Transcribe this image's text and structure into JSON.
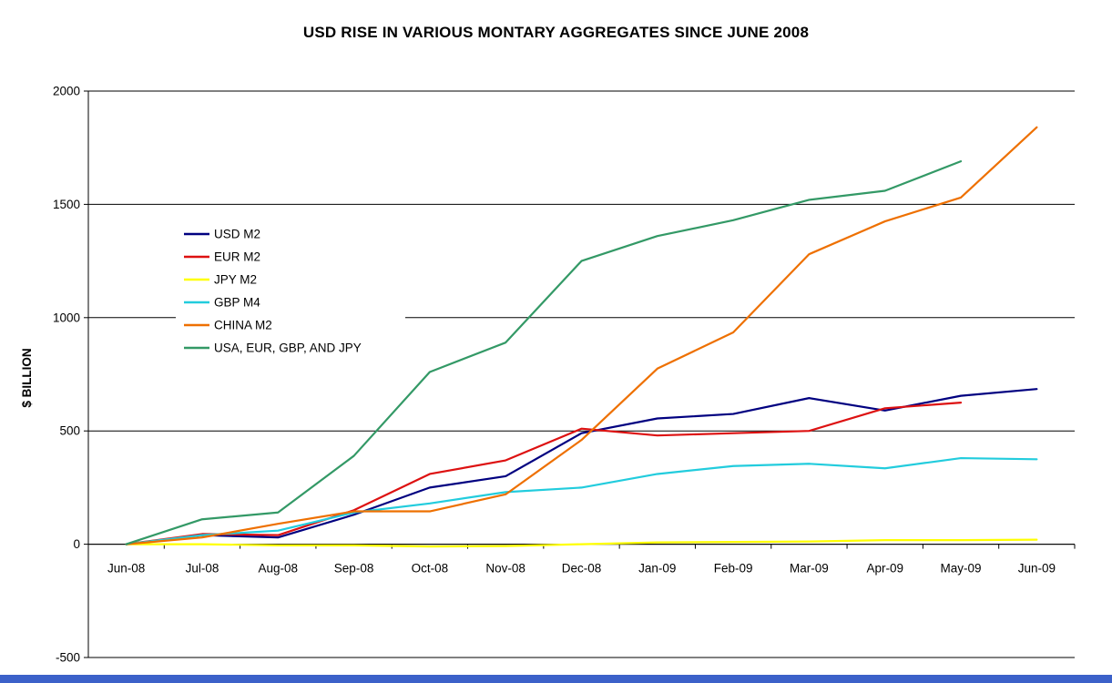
{
  "window": {
    "background": "#ffffff",
    "footer_bar_color": "#3c61c9"
  },
  "chart_data": {
    "type": "line",
    "title": "USD RISE IN VARIOUS MONTARY AGGREGATES SINCE JUNE 2008",
    "xlabel": "",
    "ylabel": "$ BILLION",
    "categories": [
      "Jun-08",
      "Jul-08",
      "Aug-08",
      "Sep-08",
      "Oct-08",
      "Nov-08",
      "Dec-08",
      "Jan-09",
      "Feb-09",
      "Mar-09",
      "Apr-09",
      "May-09",
      "Jun-09"
    ],
    "ylim": [
      -500,
      2000
    ],
    "ytick_interval": 500,
    "ytick_labels": [
      "-500",
      "0",
      "500",
      "1000",
      "1500",
      "2000"
    ],
    "grid": true,
    "legend_position": "inside-left",
    "axis_color": "#000000",
    "series": [
      {
        "name": "USD M2",
        "color": "#000080",
        "values": [
          0,
          40,
          30,
          130,
          250,
          300,
          490,
          555,
          575,
          645,
          590,
          655,
          685
        ]
      },
      {
        "name": "EUR M2",
        "color": "#dd1111",
        "values": [
          0,
          45,
          40,
          150,
          310,
          370,
          510,
          480,
          490,
          500,
          600,
          625,
          null
        ]
      },
      {
        "name": "JPY M2",
        "color": "#ffff00",
        "values": [
          0,
          0,
          -5,
          -5,
          -10,
          -8,
          0,
          8,
          10,
          12,
          18,
          18,
          20
        ]
      },
      {
        "name": "GBP M4",
        "color": "#22ccdd",
        "values": [
          0,
          40,
          60,
          140,
          180,
          230,
          250,
          310,
          345,
          355,
          335,
          380,
          375
        ]
      },
      {
        "name": "CHINA M2",
        "color": "#ee7000",
        "values": [
          0,
          30,
          90,
          145,
          145,
          220,
          460,
          775,
          935,
          1280,
          1425,
          1530,
          1840
        ]
      },
      {
        "name": "USA, EUR, GBP, AND JPY",
        "color": "#339966",
        "values": [
          0,
          110,
          140,
          390,
          760,
          890,
          1250,
          1360,
          1430,
          1520,
          1560,
          1690,
          null
        ]
      }
    ]
  }
}
